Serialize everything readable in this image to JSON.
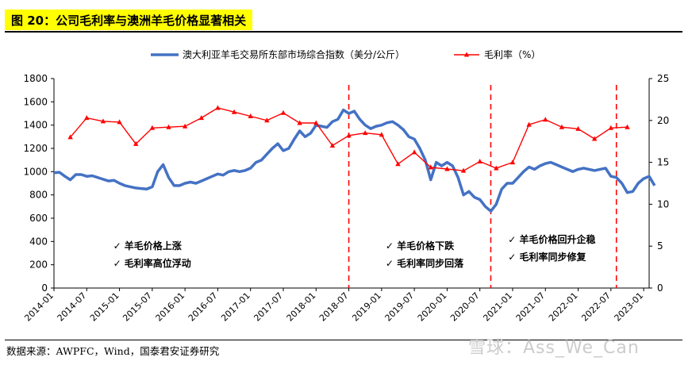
{
  "title": "图 20：公司毛利率与澳洲羊毛价格显著相关",
  "source": "数据来源：AWPFC，Wind，国泰君安证券研究",
  "watermark": "雪球：Ass_We_Can",
  "chart_data": {
    "type": "line",
    "x_tick_labels": [
      "2014-01",
      "2014-07",
      "2015-01",
      "2015-07",
      "2016-01",
      "2016-07",
      "2017-01",
      "2017-07",
      "2018-01",
      "2018-07",
      "2019-01",
      "2019-07",
      "2020-01",
      "2020-07",
      "2021-01",
      "2021-07",
      "2022-01",
      "2022-07",
      "2023-01"
    ],
    "xlim": [
      "2014-01",
      "2023-02"
    ],
    "y_left": {
      "lim": [
        0,
        1800
      ],
      "ticks": [
        0,
        200,
        400,
        600,
        800,
        1000,
        1200,
        1400,
        1600,
        1800
      ]
    },
    "y_right": {
      "lim": [
        0,
        25
      ],
      "ticks": [
        0,
        5,
        10,
        15,
        20,
        25
      ]
    },
    "legend_position": "top-center",
    "series": [
      {
        "name": "澳大利亚羊毛交易所东部市场综合指数（美分/公斤）",
        "axis": "left",
        "color": "#4472c4",
        "points": [
          [
            "2014-01",
            990
          ],
          [
            "2014-02",
            995
          ],
          [
            "2014-03",
            960
          ],
          [
            "2014-04",
            930
          ],
          [
            "2014-05",
            975
          ],
          [
            "2014-06",
            975
          ],
          [
            "2014-07",
            960
          ],
          [
            "2014-08",
            965
          ],
          [
            "2014-09",
            950
          ],
          [
            "2014-10",
            935
          ],
          [
            "2014-11",
            920
          ],
          [
            "2014-12",
            925
          ],
          [
            "2015-01",
            900
          ],
          [
            "2015-02",
            880
          ],
          [
            "2015-03",
            870
          ],
          [
            "2015-04",
            860
          ],
          [
            "2015-05",
            855
          ],
          [
            "2015-06",
            850
          ],
          [
            "2015-07",
            870
          ],
          [
            "2015-08",
            1000
          ],
          [
            "2015-09",
            1060
          ],
          [
            "2015-10",
            950
          ],
          [
            "2015-11",
            880
          ],
          [
            "2015-12",
            880
          ],
          [
            "2016-01",
            900
          ],
          [
            "2016-02",
            910
          ],
          [
            "2016-03",
            900
          ],
          [
            "2016-04",
            920
          ],
          [
            "2016-05",
            940
          ],
          [
            "2016-06",
            960
          ],
          [
            "2016-07",
            980
          ],
          [
            "2016-08",
            970
          ],
          [
            "2016-09",
            1000
          ],
          [
            "2016-10",
            1010
          ],
          [
            "2016-11",
            1000
          ],
          [
            "2016-12",
            1010
          ],
          [
            "2017-01",
            1030
          ],
          [
            "2017-02",
            1080
          ],
          [
            "2017-03",
            1100
          ],
          [
            "2017-04",
            1150
          ],
          [
            "2017-05",
            1200
          ],
          [
            "2017-06",
            1240
          ],
          [
            "2017-07",
            1180
          ],
          [
            "2017-08",
            1200
          ],
          [
            "2017-09",
            1280
          ],
          [
            "2017-10",
            1350
          ],
          [
            "2017-11",
            1300
          ],
          [
            "2017-12",
            1330
          ],
          [
            "2018-01",
            1400
          ],
          [
            "2018-02",
            1390
          ],
          [
            "2018-03",
            1380
          ],
          [
            "2018-04",
            1430
          ],
          [
            "2018-05",
            1450
          ],
          [
            "2018-06",
            1530
          ],
          [
            "2018-07",
            1500
          ],
          [
            "2018-08",
            1520
          ],
          [
            "2018-09",
            1450
          ],
          [
            "2018-10",
            1400
          ],
          [
            "2018-11",
            1370
          ],
          [
            "2018-12",
            1390
          ],
          [
            "2019-01",
            1400
          ],
          [
            "2019-02",
            1420
          ],
          [
            "2019-03",
            1430
          ],
          [
            "2019-04",
            1400
          ],
          [
            "2019-05",
            1360
          ],
          [
            "2019-06",
            1300
          ],
          [
            "2019-07",
            1280
          ],
          [
            "2019-08",
            1200
          ],
          [
            "2019-09",
            1100
          ],
          [
            "2019-10",
            930
          ],
          [
            "2019-11",
            1080
          ],
          [
            "2019-12",
            1050
          ],
          [
            "2020-01",
            1080
          ],
          [
            "2020-02",
            1050
          ],
          [
            "2020-03",
            950
          ],
          [
            "2020-04",
            800
          ],
          [
            "2020-05",
            830
          ],
          [
            "2020-06",
            780
          ],
          [
            "2020-07",
            760
          ],
          [
            "2020-08",
            700
          ],
          [
            "2020-09",
            660
          ],
          [
            "2020-10",
            720
          ],
          [
            "2020-11",
            850
          ],
          [
            "2020-12",
            900
          ],
          [
            "2021-01",
            900
          ],
          [
            "2021-02",
            950
          ],
          [
            "2021-03",
            1000
          ],
          [
            "2021-04",
            1040
          ],
          [
            "2021-05",
            1020
          ],
          [
            "2021-06",
            1050
          ],
          [
            "2021-07",
            1070
          ],
          [
            "2021-08",
            1080
          ],
          [
            "2021-09",
            1060
          ],
          [
            "2021-10",
            1040
          ],
          [
            "2021-11",
            1020
          ],
          [
            "2021-12",
            1000
          ],
          [
            "2022-01",
            1020
          ],
          [
            "2022-02",
            1030
          ],
          [
            "2022-03",
            1020
          ],
          [
            "2022-04",
            1010
          ],
          [
            "2022-05",
            1020
          ],
          [
            "2022-06",
            1030
          ],
          [
            "2022-07",
            960
          ],
          [
            "2022-08",
            950
          ],
          [
            "2022-09",
            900
          ],
          [
            "2022-10",
            820
          ],
          [
            "2022-11",
            830
          ],
          [
            "2022-12",
            900
          ],
          [
            "2023-01",
            940
          ],
          [
            "2023-02",
            960
          ],
          [
            "2023-03",
            880
          ]
        ]
      },
      {
        "name": "毛利率（%）",
        "axis": "right",
        "color": "#ff0000",
        "marker": "triangle",
        "points": [
          [
            "2014-04",
            18.0
          ],
          [
            "2014-07",
            20.3
          ],
          [
            "2014-10",
            19.9
          ],
          [
            "2015-01",
            19.8
          ],
          [
            "2015-04",
            17.2
          ],
          [
            "2015-07",
            19.1
          ],
          [
            "2015-10",
            19.2
          ],
          [
            "2016-01",
            19.3
          ],
          [
            "2016-04",
            20.3
          ],
          [
            "2016-07",
            21.5
          ],
          [
            "2016-10",
            21.0
          ],
          [
            "2017-01",
            20.5
          ],
          [
            "2017-04",
            20.0
          ],
          [
            "2017-07",
            20.9
          ],
          [
            "2017-10",
            19.7
          ],
          [
            "2018-01",
            19.7
          ],
          [
            "2018-04",
            17.0
          ],
          [
            "2018-07",
            18.2
          ],
          [
            "2018-10",
            18.5
          ],
          [
            "2019-01",
            18.3
          ],
          [
            "2019-04",
            14.8
          ],
          [
            "2019-07",
            16.2
          ],
          [
            "2019-10",
            14.4
          ],
          [
            "2020-01",
            14.2
          ],
          [
            "2020-04",
            14.0
          ],
          [
            "2020-07",
            15.1
          ],
          [
            "2020-10",
            14.3
          ],
          [
            "2021-01",
            15.0
          ],
          [
            "2021-04",
            19.5
          ],
          [
            "2021-07",
            20.1
          ],
          [
            "2021-10",
            19.2
          ],
          [
            "2022-01",
            19.0
          ],
          [
            "2022-04",
            17.8
          ],
          [
            "2022-07",
            19.1
          ],
          [
            "2022-10",
            19.2
          ]
        ]
      }
    ],
    "dividers": [
      "2018-07",
      "2020-09",
      "2022-08"
    ],
    "annotations": [
      {
        "lines": [
          "✓  羊毛价格上涨",
          "✓  毛利率高位浮动"
        ],
        "anchor": "2015-01"
      },
      {
        "lines": [
          "✓  羊毛价格下跌",
          "✓  毛利率同步回落"
        ],
        "anchor": "2019-01"
      },
      {
        "lines": [
          "✓  羊毛价格回升企稳",
          "✓  毛利率同步修复"
        ],
        "anchor": "2020-11"
      }
    ]
  }
}
